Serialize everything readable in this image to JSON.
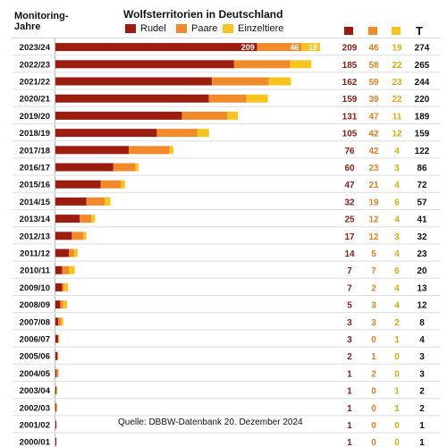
{
  "header": {
    "left_label_line1": "Monitoring-",
    "left_label_line2": "Jahre",
    "total_label": "T"
  },
  "colors": {
    "rudel": "#9c1d10",
    "paare": "#f08a2a",
    "einzeltiere": "#f7c51e"
  },
  "source": "Quelle: DBBW-Datenbank 20. Dezember 2024",
  "chart_data": {
    "type": "bar",
    "stacked": true,
    "orientation": "horizontal",
    "title": "Wolfsterritorien in Deutschland",
    "categories": [
      "2023/24",
      "2022/23",
      "2021/22",
      "2020/21",
      "2019/20",
      "2018/19",
      "2017/18",
      "2016/17",
      "2015/16",
      "2014/15",
      "2013/14",
      "2012/13",
      "2011/12",
      "2010/11",
      "2009/10",
      "2008/09",
      "2007/08",
      "2006/07",
      "2005/06",
      "2004/05",
      "2003/04",
      "2002/03",
      "2001/02",
      "2000/01"
    ],
    "series": [
      {
        "name": "Rudel",
        "values": [
          209,
          185,
          162,
          159,
          131,
          105,
          76,
          60,
          47,
          32,
          25,
          17,
          14,
          7,
          7,
          5,
          3,
          3,
          2,
          1,
          1,
          1,
          1,
          1
        ]
      },
      {
        "name": "Paare",
        "values": [
          46,
          58,
          59,
          39,
          47,
          42,
          42,
          23,
          21,
          19,
          12,
          12,
          5,
          7,
          2,
          3,
          3,
          0,
          1,
          2,
          0,
          0,
          0,
          0
        ]
      },
      {
        "name": "Einzeltiere",
        "values": [
          19,
          22,
          23,
          22,
          11,
          12,
          4,
          3,
          4,
          6,
          4,
          3,
          4,
          6,
          4,
          4,
          2,
          1,
          0,
          0,
          1,
          1,
          0,
          0
        ]
      }
    ],
    "totals": [
      274,
      265,
      244,
      220,
      189,
      159,
      122,
      86,
      72,
      57,
      41,
      32,
      23,
      20,
      13,
      12,
      8,
      4,
      3,
      3,
      2,
      2,
      1,
      1
    ],
    "inline_labels_first_row": [
      "209",
      "46",
      "19"
    ],
    "xlim": [
      0,
      280
    ],
    "grid": false,
    "legend": "top"
  }
}
